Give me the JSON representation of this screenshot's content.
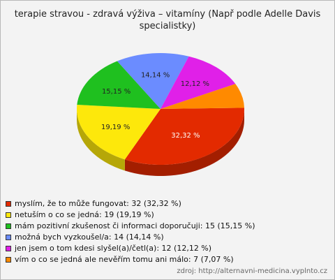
{
  "chart_data": {
    "type": "pie",
    "title": "terapie stravou - zdravá výživa – vitamíny (Např podle Adelle Davis specialistky)",
    "slices": [
      {
        "label": "myslím, že to může fungovat",
        "count": 32,
        "percent": 32.32,
        "value_label": "32,32 %",
        "legend": "myslím, že to může fungovat: 32 (32,32 %)",
        "color": "#e32a00"
      },
      {
        "label": "netuším o co se jedná",
        "count": 19,
        "percent": 19.19,
        "value_label": "19,19 %",
        "legend": "netuším o co se jedná: 19 (19,19 %)",
        "color": "#fde80b"
      },
      {
        "label": "mám pozitivní zkušenost či informaci doporučuji",
        "count": 15,
        "percent": 15.15,
        "value_label": "15,15 %",
        "legend": "mám pozitivní zkušenost či informaci doporučuji: 15 (15,15 %)",
        "color": "#1fc01f"
      },
      {
        "label": "možná bych vyzkoušel/a",
        "count": 14,
        "percent": 14.14,
        "value_label": "14,14 %",
        "legend": "možná bych vyzkoušel/a: 14 (14,14 %)",
        "color": "#6b8cff"
      },
      {
        "label": "jen jsem o tom kdesi slyšel(a)/četl(a)",
        "count": 12,
        "percent": 12.12,
        "value_label": "12,12 %",
        "legend": "jen jsem o tom kdesi slyšel(a)/četl(a): 12 (12,12 %)",
        "color": "#e020e8"
      },
      {
        "label": "vím o co se jedná ale nevěřím tomu ani málo",
        "count": 7,
        "percent": 7.07,
        "value_label": "",
        "legend": "vím o co se jedná ale nevěřím tomu ani málo: 7 (7,07 %)",
        "color": "#ff8a00"
      }
    ],
    "legend_position": "bottom-left"
  },
  "source_text": "zdroj: http://alternavni-medicina.vyplnto.cz"
}
